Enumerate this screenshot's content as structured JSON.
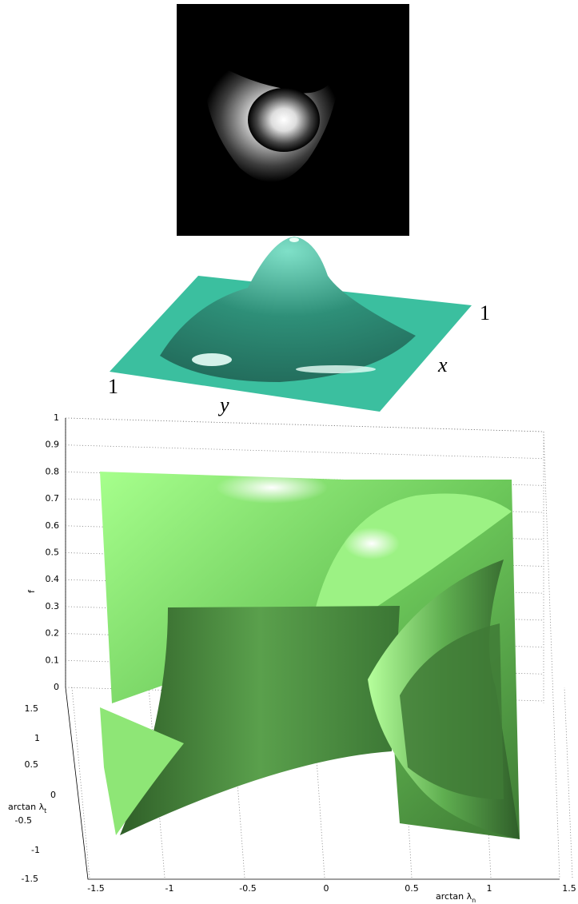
{
  "surface_panel": {
    "x_end_label": "1",
    "x_label": "x",
    "y_label": "y",
    "y_end_label": "1"
  },
  "plot_panel": {
    "z_label": "f",
    "z_ticks": [
      "1",
      "0.9",
      "0.8",
      "0.7",
      "0.6",
      "0.5",
      "0.4",
      "0.3",
      "0.2",
      "0.1",
      "0"
    ],
    "y_label": "arctan λ",
    "y_label_sub": "t",
    "y_ticks": [
      "1.5",
      "1",
      "0.5",
      "0",
      "-0.5",
      "-1",
      "-1.5"
    ],
    "x_label": "arctan λ",
    "x_label_sub": "n",
    "x_ticks": [
      "-1.5",
      "-1",
      "-0.5",
      "0",
      "0.5",
      "1",
      "1.5"
    ]
  }
}
